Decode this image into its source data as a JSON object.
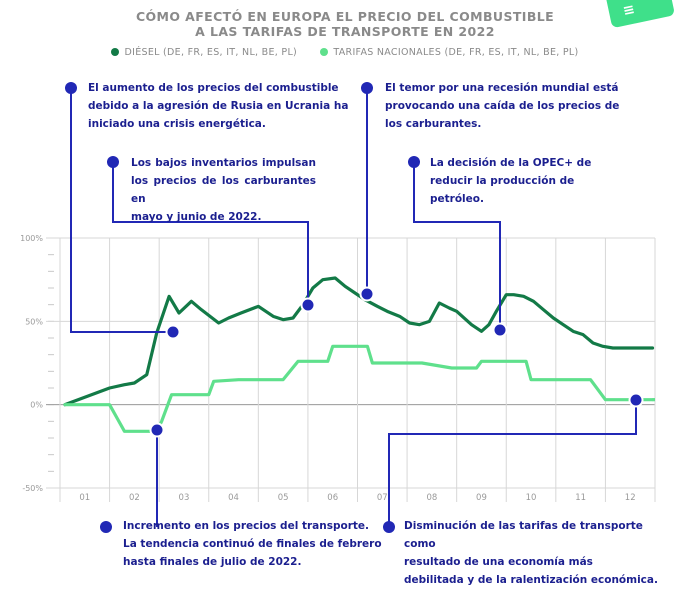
{
  "header": {
    "title_line1": "CÓMO AFECTÓ EN EUROPA EL PRECIO DEL COMBUSTIBLE",
    "title_line2": "A LAS TARIFAS DE TRANSPORTE EN 2022"
  },
  "legend": {
    "diesel_label": "DIÉSEL (DE, FR, ES, IT, NL, BE, PL)",
    "tarifas_label": "TARIFAS NACIONALES (DE, FR, ES, IT, NL, BE, PL)"
  },
  "colors": {
    "diesel": "#137a47",
    "tarifas": "#5fe08c",
    "annotation": "#2128b5",
    "annotation_text": "#1b1f8f",
    "grid": "#d7d7d7",
    "axis_text": "#9a9a9a"
  },
  "annotations": {
    "a1": [
      "El aumento de los precios del combustible",
      "debido a la agresión de Rusia en Ucrania ha",
      "iniciado una crisis energética."
    ],
    "a2": [
      "Los bajos inventarios impulsan",
      "los precios de los carburantes en",
      "mayo y junio de 2022."
    ],
    "a3": [
      "El temor por una recesión mundial está",
      "provocando una caída de los precios de",
      "los carburantes."
    ],
    "a4": [
      "La decisión de la OPEC+ de",
      "reducir la producción de petróleo."
    ],
    "a5": [
      "Incremento en los precios del transporte.",
      "La tendencia continuó de finales de febrero",
      "hasta finales de julio de 2022."
    ],
    "a6": [
      "Disminución de las tarifas de transporte como",
      "resultado de una economía más",
      "debilitada y de la ralentización económica."
    ]
  },
  "chart_data": {
    "type": "line",
    "title": "CÓMO AFECTÓ EN EUROPA EL PRECIO DEL COMBUSTIBLE A LAS TARIFAS DE TRANSPORTE EN 2022",
    "xlabel": "",
    "ylabel": "",
    "categories": [
      "01",
      "02",
      "03",
      "04",
      "05",
      "06",
      "07",
      "08",
      "09",
      "10",
      "11",
      "12"
    ],
    "ylim": [
      -50,
      100
    ],
    "y_ticks": [
      "100%",
      "50%",
      "0%",
      "-50%"
    ],
    "y_tick_values": [
      100,
      50,
      0,
      -50
    ],
    "x_range": [
      1,
      13
    ],
    "legend_position": "top",
    "grid": true,
    "series": [
      {
        "name": "DIÉSEL (DE, FR, ES, IT, NL, BE, PL)",
        "x": [
          1.1,
          2.0,
          2.3,
          2.5,
          2.75,
          2.95,
          3.2,
          3.4,
          3.65,
          3.85,
          4.2,
          4.4,
          4.65,
          5.0,
          5.3,
          5.5,
          5.7,
          5.9,
          6.1,
          6.3,
          6.55,
          6.75,
          6.95,
          7.15,
          7.4,
          7.6,
          7.85,
          8.05,
          8.25,
          8.45,
          8.65,
          8.85,
          9.0,
          9.3,
          9.5,
          9.65,
          9.8,
          10.0,
          10.15,
          10.35,
          10.55,
          10.75,
          10.95,
          11.15,
          11.35,
          11.55,
          11.75,
          11.95,
          12.15,
          12.35,
          12.6,
          12.95
        ],
        "values": [
          0,
          10,
          12,
          13,
          18,
          43,
          65,
          55,
          62,
          57,
          49,
          52,
          55,
          59,
          53,
          51,
          52,
          60,
          70,
          75,
          76,
          71,
          67,
          63,
          59,
          56,
          53,
          49,
          48,
          50,
          61,
          58,
          56,
          48,
          44,
          48,
          56,
          66,
          66,
          65,
          62,
          57,
          52,
          48,
          44,
          42,
          37,
          35,
          34,
          34,
          34,
          34
        ]
      },
      {
        "name": "TARIFAS NACIONALES (DE, FR, ES, IT, NL, BE, PL)",
        "x": [
          1.1,
          1.5,
          2.0,
          2.15,
          2.3,
          2.55,
          2.75,
          2.95,
          3.05,
          3.25,
          3.45,
          3.65,
          3.85,
          4.0,
          4.1,
          4.6,
          5.05,
          5.4,
          5.5,
          5.8,
          6.2,
          6.4,
          6.5,
          7.0,
          7.2,
          7.3,
          7.9,
          8.3,
          8.9,
          9.05,
          9.4,
          9.5,
          9.8,
          10.2,
          10.4,
          10.5,
          11.0,
          11.15,
          11.25,
          11.7,
          12.0,
          12.15,
          12.35,
          12.6,
          12.95
        ],
        "values": [
          0,
          0,
          0,
          -8,
          -16,
          -16,
          -16,
          -16,
          -10,
          6,
          6,
          6,
          6,
          6,
          14,
          15,
          15,
          15,
          15,
          26,
          26,
          26,
          35,
          35,
          35,
          25,
          25,
          25,
          22,
          22,
          22,
          26,
          26,
          26,
          26,
          15,
          15,
          15,
          15,
          15,
          3,
          3,
          3,
          3,
          3
        ]
      }
    ]
  }
}
